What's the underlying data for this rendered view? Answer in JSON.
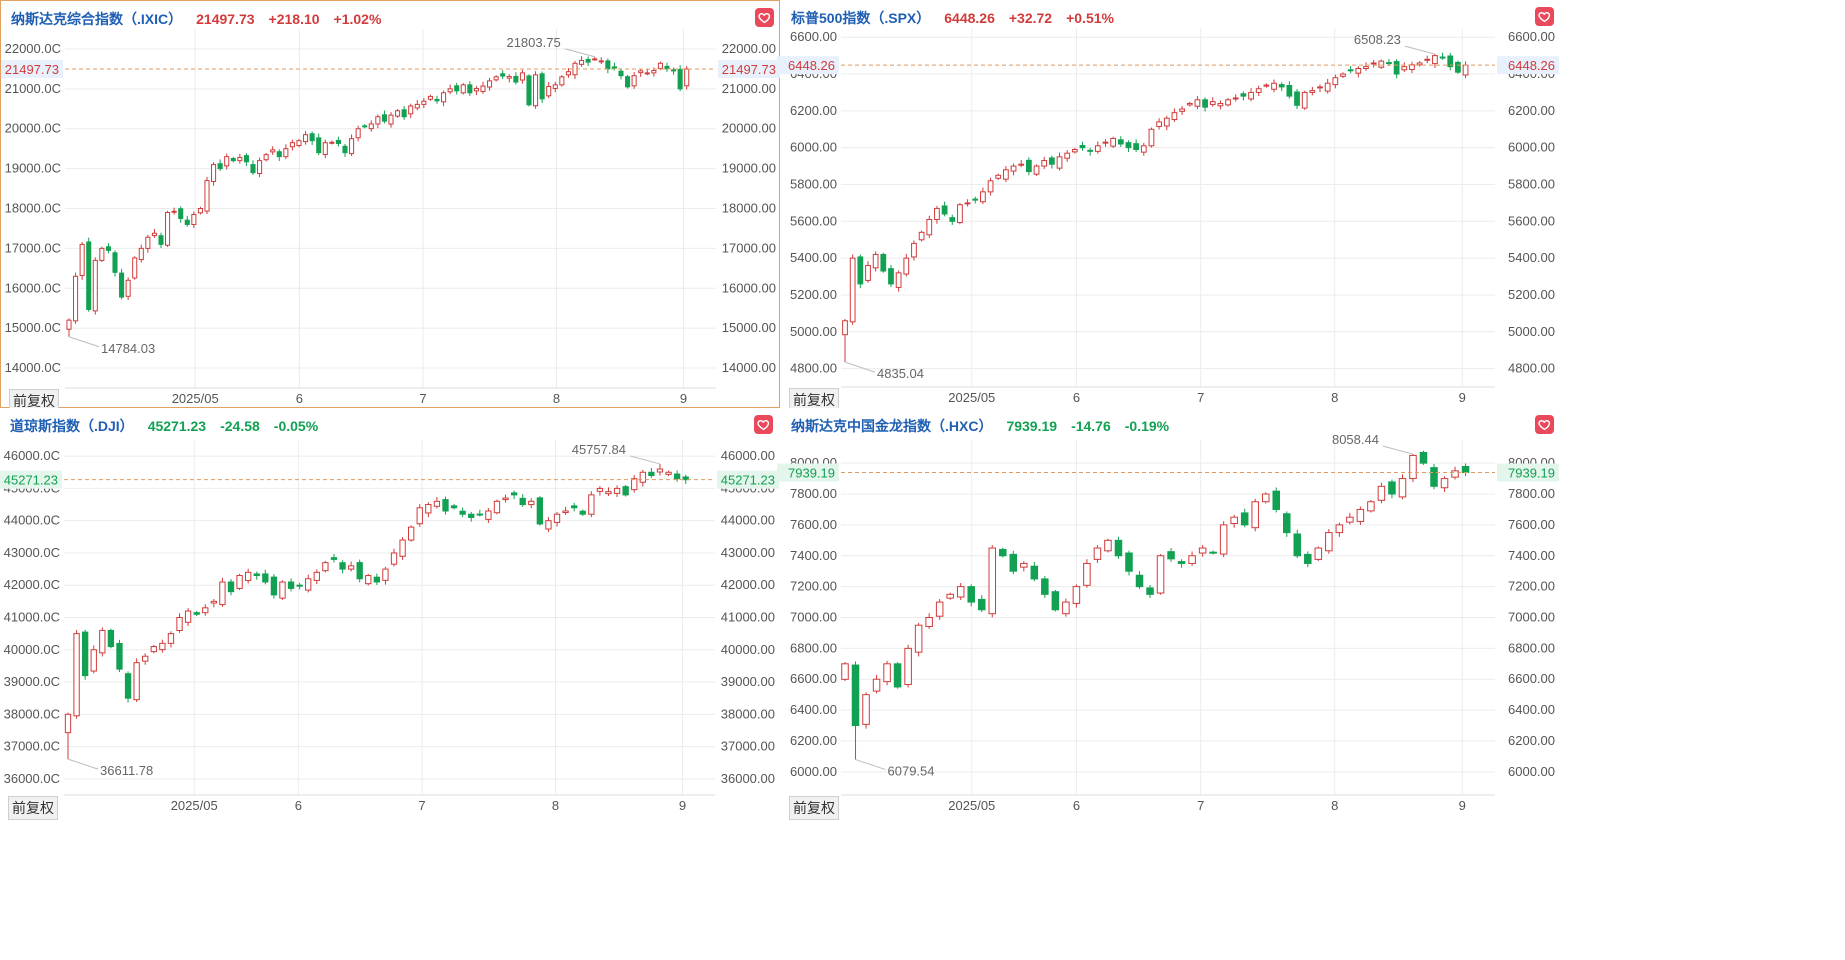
{
  "restore_label": "前复权",
  "colors": {
    "up": "#d23b3b",
    "down": "#12a153",
    "grid": "#ececec",
    "refline": "#e39a5c",
    "active_border": "#e3a063"
  },
  "panels": [
    {
      "id": "ixic",
      "name": "纳斯达克综合指数（.IXIC）",
      "price": "21497.73",
      "change": "+218.10",
      "pct": "+1.02%",
      "trend": "up",
      "current": 21497.73,
      "current_label": "21497.73",
      "yticks": [
        14000,
        15000,
        16000,
        17000,
        18000,
        19000,
        20000,
        21000,
        22000
      ],
      "tick_labels_left": [
        "14000.0C",
        "15000.0C",
        "16000.0C",
        "17000.0C",
        "18000.0C",
        "19000.0C",
        "20000.0C",
        "21000.0C",
        "22000.0C"
      ],
      "tick_labels_right": [
        "14000.00",
        "15000.00",
        "16000.00",
        "17000.00",
        "18000.00",
        "19000.00",
        "20000.00",
        "21000.00",
        "22000.00"
      ],
      "hi_label": "21803.75",
      "lo_label": "14784.03",
      "hi": 21803.75,
      "lo": 14784.03
    },
    {
      "id": "spx",
      "name": "标普500指数（.SPX）",
      "price": "6448.26",
      "change": "+32.72",
      "pct": "+0.51%",
      "trend": "up",
      "current": 6448.26,
      "current_label": "6448.26",
      "yticks": [
        4800,
        5000,
        5200,
        5400,
        5600,
        5800,
        6000,
        6200,
        6400,
        6600
      ],
      "tick_labels_left": [
        "4800.00",
        "5000.00",
        "5200.00",
        "5400.00",
        "5600.00",
        "5800.00",
        "6000.00",
        "6200.00",
        "6400.00",
        "6600.00"
      ],
      "tick_labels_right": [
        "4800.00",
        "5000.00",
        "5200.00",
        "5400.00",
        "5600.00",
        "5800.00",
        "6000.00",
        "6200.00",
        "6400.00",
        "6600.00"
      ],
      "hi_label": "6508.23",
      "lo_label": "4835.04",
      "hi": 6508.23,
      "lo": 4835.04
    },
    {
      "id": "dji",
      "name": "道琼斯指数（.DJI）",
      "price": "45271.23",
      "change": "-24.58",
      "pct": "-0.05%",
      "trend": "down",
      "current": 45271.23,
      "current_label": "45271.23",
      "yticks": [
        36000,
        37000,
        38000,
        39000,
        40000,
        41000,
        42000,
        43000,
        44000,
        45000,
        46000
      ],
      "tick_labels_left": [
        "36000.0C",
        "37000.0C",
        "38000.0C",
        "39000.0C",
        "40000.0C",
        "41000.0C",
        "42000.0C",
        "43000.0C",
        "44000.0C",
        "45000.0C",
        "46000.0C"
      ],
      "tick_labels_right": [
        "36000.00",
        "37000.00",
        "38000.00",
        "39000.00",
        "40000.00",
        "41000.00",
        "42000.00",
        "43000.00",
        "44000.00",
        "45000.00",
        "46000.00"
      ],
      "hi_label": "45757.84",
      "lo_label": "36611.78",
      "hi": 45757.84,
      "lo": 36611.78
    },
    {
      "id": "hxc",
      "name": "纳斯达克中国金龙指数（.HXC）",
      "price": "7939.19",
      "change": "-14.76",
      "pct": "-0.19%",
      "trend": "down",
      "current": 7939.19,
      "current_label": "7939.19",
      "yticks": [
        6000,
        6200,
        6400,
        6600,
        6800,
        7000,
        7200,
        7400,
        7600,
        7800,
        8000
      ],
      "tick_labels_left": [
        "6000.00",
        "6200.00",
        "6400.00",
        "6600.00",
        "6800.00",
        "7000.00",
        "7200.00",
        "7400.00",
        "7600.00",
        "7800.00",
        "8000.00"
      ],
      "tick_labels_right": [
        "6000.00",
        "6200.00",
        "6400.00",
        "6600.00",
        "6800.00",
        "7000.00",
        "7200.00",
        "7400.00",
        "7600.00",
        "7800.00",
        "8000.00"
      ],
      "hi_label": "8058.44",
      "lo_label": "6079.54",
      "hi": 8058.44,
      "lo": 6079.54
    }
  ],
  "chart_data": [
    {
      "type": "candlestick",
      "title": "纳斯达克综合指数（.IXIC）",
      "xticks": [
        "2025/05",
        "6",
        "7",
        "8",
        "9"
      ],
      "ylim": [
        13500,
        22500
      ],
      "high": 21803.75,
      "low": 14784.03,
      "last": 21497.73,
      "closes": [
        15201,
        16300,
        17100,
        15470,
        16700,
        17000,
        16950,
        16400,
        15780,
        16200,
        16760,
        17000,
        17280,
        17380,
        17100,
        17900,
        17930,
        17750,
        17600,
        17850,
        18000,
        18700,
        19100,
        19000,
        19300,
        19200,
        19280,
        19170,
        18900,
        19200,
        19350,
        19470,
        19300,
        19500,
        19650,
        19700,
        19850,
        19700,
        19400,
        19650,
        19660,
        19630,
        19400,
        19750,
        20000,
        20050,
        20120,
        20300,
        20190,
        20340,
        20450,
        20300,
        20570,
        20610,
        20690,
        20810,
        20700,
        20900,
        21000,
        20950,
        21100,
        20900,
        21010,
        21070,
        21200,
        21300,
        21320,
        21310,
        21170,
        21400,
        20600,
        21350,
        20750,
        21060,
        21100,
        21300,
        21430,
        21640,
        21710,
        21670,
        21750,
        21700,
        21500,
        21520,
        21330,
        21050,
        21330,
        21450,
        21400,
        21460,
        21640,
        21500,
        21460,
        21000,
        21497.73
      ]
    },
    {
      "type": "candlestick",
      "title": "标普500指数（.SPX）",
      "xticks": [
        "2025/05",
        "6",
        "7",
        "8",
        "9"
      ],
      "ylim": [
        4700,
        6650
      ],
      "high": 6508.23,
      "low": 4835.04,
      "last": 6448.26,
      "closes": [
        5060,
        5400,
        5260,
        5360,
        5420,
        5330,
        5260,
        5320,
        5400,
        5480,
        5540,
        5610,
        5670,
        5640,
        5600,
        5690,
        5700,
        5720,
        5760,
        5820,
        5850,
        5880,
        5900,
        5910,
        5870,
        5900,
        5930,
        5910,
        5950,
        5970,
        5990,
        6000,
        5980,
        6010,
        6030,
        6050,
        6020,
        6000,
        5990,
        6010,
        6100,
        6140,
        6160,
        6190,
        6210,
        6240,
        6260,
        6220,
        6250,
        6240,
        6260,
        6270,
        6280,
        6300,
        6320,
        6340,
        6350,
        6330,
        6280,
        6230,
        6300,
        6310,
        6330,
        6350,
        6380,
        6400,
        6420,
        6430,
        6440,
        6460,
        6470,
        6460,
        6400,
        6440,
        6450,
        6460,
        6480,
        6500,
        6490,
        6440,
        6410,
        6448.26
      ]
    },
    {
      "type": "candlestick",
      "title": "道琼斯指数（.DJI）",
      "xticks": [
        "2025/05",
        "6",
        "7",
        "8",
        "9"
      ],
      "ylim": [
        35500,
        46500
      ],
      "high": 45757.84,
      "low": 36611.78,
      "last": 45271.23,
      "closes": [
        38000,
        40500,
        39200,
        40000,
        40600,
        40100,
        39400,
        38500,
        39600,
        39800,
        40100,
        40200,
        40500,
        41000,
        41200,
        41100,
        41300,
        41500,
        42100,
        41800,
        42300,
        42400,
        42300,
        42100,
        41700,
        42100,
        41900,
        42000,
        42200,
        42400,
        42700,
        42800,
        42500,
        42600,
        42200,
        42300,
        42100,
        42500,
        43000,
        43400,
        43800,
        44400,
        44500,
        44600,
        44300,
        44400,
        44200,
        44100,
        44200,
        44300,
        44600,
        44700,
        44800,
        44500,
        44600,
        43900,
        44000,
        44200,
        44300,
        44400,
        44200,
        44800,
        45000,
        44900,
        45000,
        44800,
        45300,
        45500,
        45400,
        45600,
        45500,
        45300,
        45271.23
      ]
    },
    {
      "type": "candlestick",
      "title": "纳斯达克中国金龙指数（.HXC）",
      "xticks": [
        "2025/05",
        "6",
        "7",
        "8",
        "9"
      ],
      "ylim": [
        5850,
        8150
      ],
      "high": 8058.44,
      "low": 6079.54,
      "last": 7939.19,
      "closes": [
        6700,
        6300,
        6500,
        6600,
        6700,
        6550,
        6800,
        6950,
        7000,
        7100,
        7150,
        7200,
        7100,
        7050,
        7450,
        7400,
        7300,
        7350,
        7250,
        7150,
        7050,
        7100,
        7200,
        7350,
        7450,
        7500,
        7400,
        7300,
        7200,
        7150,
        7400,
        7380,
        7350,
        7400,
        7450,
        7420,
        7600,
        7650,
        7600,
        7750,
        7800,
        7700,
        7550,
        7400,
        7350,
        7450,
        7550,
        7600,
        7650,
        7700,
        7750,
        7850,
        7800,
        7900,
        8050,
        8000,
        7850,
        7900,
        7950,
        7939.19
      ]
    }
  ]
}
